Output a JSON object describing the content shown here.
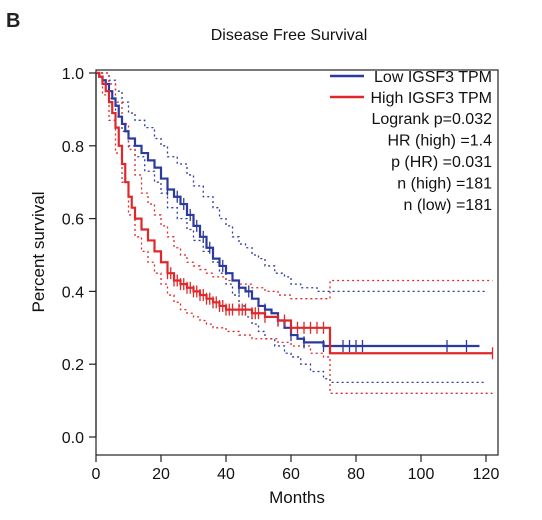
{
  "panel_label": "B",
  "colors": {
    "low": "#2b3a9e",
    "high": "#e0282a",
    "axis": "#222222"
  },
  "chart_data": {
    "type": "line",
    "title": "Disease Free Survival",
    "xlabel": "Months",
    "ylabel": "Percent survival",
    "xlim": [
      0,
      125
    ],
    "ylim": [
      0,
      1.0
    ],
    "xticks": [
      0,
      20,
      40,
      60,
      80,
      100,
      120
    ],
    "yticks": [
      0.0,
      0.2,
      0.4,
      0.6,
      0.8,
      1.0
    ],
    "ytick_labels": [
      "0.0",
      "0.2",
      "0.4",
      "0.6",
      "0.8",
      "1.0"
    ],
    "legend_position": "top-right",
    "legend_entries": [
      "Low IGSF3 TPM",
      "High IGSF3 TPM"
    ],
    "stats": [
      "Logrank p=0.032",
      "HR (high) =1.4",
      "p (HR) =0.031",
      "n (high) =181",
      "n (low) =181"
    ],
    "series": [
      {
        "name": "Low IGSF3 TPM",
        "color_key": "low",
        "steps": [
          [
            0,
            1.0
          ],
          [
            1,
            0.99
          ],
          [
            2,
            0.98
          ],
          [
            3,
            0.97
          ],
          [
            4,
            0.95
          ],
          [
            5,
            0.93
          ],
          [
            6,
            0.91
          ],
          [
            7,
            0.88
          ],
          [
            8,
            0.86
          ],
          [
            9,
            0.84
          ],
          [
            10,
            0.82
          ],
          [
            12,
            0.8
          ],
          [
            14,
            0.78
          ],
          [
            16,
            0.76
          ],
          [
            18,
            0.74
          ],
          [
            20,
            0.71
          ],
          [
            22,
            0.68
          ],
          [
            24,
            0.66
          ],
          [
            26,
            0.64
          ],
          [
            28,
            0.61
          ],
          [
            30,
            0.58
          ],
          [
            32,
            0.55
          ],
          [
            34,
            0.52
          ],
          [
            36,
            0.49
          ],
          [
            38,
            0.47
          ],
          [
            40,
            0.45
          ],
          [
            42,
            0.43
          ],
          [
            44,
            0.41
          ],
          [
            46,
            0.4
          ],
          [
            48,
            0.38
          ],
          [
            50,
            0.36
          ],
          [
            52,
            0.35
          ],
          [
            54,
            0.34
          ],
          [
            56,
            0.32
          ],
          [
            58,
            0.3
          ],
          [
            60,
            0.28
          ],
          [
            62,
            0.27
          ],
          [
            64,
            0.26
          ],
          [
            70,
            0.25
          ],
          [
            72,
            0.25
          ],
          [
            118,
            0.25
          ]
        ],
        "ci_upper": [
          [
            0,
            1.0
          ],
          [
            2,
            1.0
          ],
          [
            4,
            0.98
          ],
          [
            6,
            0.95
          ],
          [
            8,
            0.92
          ],
          [
            10,
            0.89
          ],
          [
            12,
            0.87
          ],
          [
            15,
            0.85
          ],
          [
            18,
            0.82
          ],
          [
            20,
            0.8
          ],
          [
            22,
            0.77
          ],
          [
            25,
            0.75
          ],
          [
            28,
            0.72
          ],
          [
            30,
            0.69
          ],
          [
            33,
            0.66
          ],
          [
            36,
            0.63
          ],
          [
            38,
            0.6
          ],
          [
            40,
            0.58
          ],
          [
            42,
            0.55
          ],
          [
            44,
            0.53
          ],
          [
            46,
            0.52
          ],
          [
            48,
            0.5
          ],
          [
            50,
            0.49
          ],
          [
            52,
            0.47
          ],
          [
            55,
            0.45
          ],
          [
            58,
            0.44
          ],
          [
            60,
            0.42
          ],
          [
            63,
            0.41
          ],
          [
            68,
            0.4
          ],
          [
            72,
            0.4
          ],
          [
            120,
            0.4
          ]
        ],
        "ci_lower": [
          [
            0,
            1.0
          ],
          [
            2,
            0.97
          ],
          [
            4,
            0.93
          ],
          [
            6,
            0.88
          ],
          [
            8,
            0.84
          ],
          [
            10,
            0.8
          ],
          [
            12,
            0.77
          ],
          [
            15,
            0.73
          ],
          [
            18,
            0.7
          ],
          [
            20,
            0.67
          ],
          [
            22,
            0.63
          ],
          [
            25,
            0.6
          ],
          [
            28,
            0.57
          ],
          [
            30,
            0.54
          ],
          [
            33,
            0.51
          ],
          [
            36,
            0.48
          ],
          [
            38,
            0.45
          ],
          [
            40,
            0.42
          ],
          [
            42,
            0.39
          ],
          [
            44,
            0.36
          ],
          [
            46,
            0.33
          ],
          [
            48,
            0.31
          ],
          [
            50,
            0.29
          ],
          [
            52,
            0.27
          ],
          [
            55,
            0.25
          ],
          [
            58,
            0.23
          ],
          [
            60,
            0.22
          ],
          [
            63,
            0.2
          ],
          [
            66,
            0.18
          ],
          [
            70,
            0.16
          ],
          [
            72,
            0.15
          ],
          [
            120,
            0.15
          ]
        ],
        "censor_times": [
          22,
          25,
          27,
          29,
          31,
          33,
          35,
          39,
          44,
          47,
          52,
          56,
          60,
          64,
          70,
          76,
          78,
          80,
          82,
          108,
          114
        ]
      },
      {
        "name": "High IGSF3 TPM",
        "color_key": "high",
        "steps": [
          [
            0,
            1.0
          ],
          [
            1,
            0.99
          ],
          [
            2,
            0.97
          ],
          [
            3,
            0.95
          ],
          [
            4,
            0.92
          ],
          [
            5,
            0.89
          ],
          [
            6,
            0.85
          ],
          [
            7,
            0.8
          ],
          [
            8,
            0.75
          ],
          [
            9,
            0.7
          ],
          [
            10,
            0.66
          ],
          [
            11,
            0.63
          ],
          [
            12,
            0.6
          ],
          [
            14,
            0.57
          ],
          [
            16,
            0.54
          ],
          [
            18,
            0.51
          ],
          [
            20,
            0.48
          ],
          [
            22,
            0.45
          ],
          [
            24,
            0.43
          ],
          [
            26,
            0.42
          ],
          [
            28,
            0.41
          ],
          [
            30,
            0.4
          ],
          [
            32,
            0.39
          ],
          [
            34,
            0.38
          ],
          [
            36,
            0.37
          ],
          [
            38,
            0.36
          ],
          [
            40,
            0.35
          ],
          [
            44,
            0.35
          ],
          [
            48,
            0.34
          ],
          [
            52,
            0.33
          ],
          [
            56,
            0.32
          ],
          [
            60,
            0.3
          ],
          [
            66,
            0.3
          ],
          [
            70,
            0.3
          ],
          [
            72,
            0.23
          ],
          [
            122,
            0.23
          ]
        ],
        "ci_upper": [
          [
            0,
            1.0
          ],
          [
            2,
            1.0
          ],
          [
            4,
            0.97
          ],
          [
            6,
            0.92
          ],
          [
            8,
            0.86
          ],
          [
            10,
            0.79
          ],
          [
            12,
            0.72
          ],
          [
            14,
            0.67
          ],
          [
            16,
            0.64
          ],
          [
            18,
            0.61
          ],
          [
            20,
            0.58
          ],
          [
            22,
            0.55
          ],
          [
            24,
            0.52
          ],
          [
            26,
            0.5
          ],
          [
            28,
            0.48
          ],
          [
            30,
            0.47
          ],
          [
            32,
            0.46
          ],
          [
            34,
            0.45
          ],
          [
            36,
            0.44
          ],
          [
            40,
            0.43
          ],
          [
            44,
            0.42
          ],
          [
            48,
            0.41
          ],
          [
            52,
            0.4
          ],
          [
            56,
            0.39
          ],
          [
            60,
            0.38
          ],
          [
            66,
            0.38
          ],
          [
            70,
            0.38
          ],
          [
            72,
            0.43
          ],
          [
            122,
            0.43
          ]
        ],
        "ci_lower": [
          [
            0,
            1.0
          ],
          [
            2,
            0.94
          ],
          [
            4,
            0.87
          ],
          [
            6,
            0.78
          ],
          [
            8,
            0.7
          ],
          [
            10,
            0.61
          ],
          [
            12,
            0.55
          ],
          [
            14,
            0.51
          ],
          [
            16,
            0.48
          ],
          [
            18,
            0.45
          ],
          [
            20,
            0.42
          ],
          [
            22,
            0.39
          ],
          [
            24,
            0.37
          ],
          [
            26,
            0.35
          ],
          [
            28,
            0.34
          ],
          [
            30,
            0.33
          ],
          [
            32,
            0.32
          ],
          [
            34,
            0.31
          ],
          [
            36,
            0.3
          ],
          [
            40,
            0.29
          ],
          [
            44,
            0.28
          ],
          [
            48,
            0.27
          ],
          [
            52,
            0.27
          ],
          [
            56,
            0.26
          ],
          [
            60,
            0.25
          ],
          [
            66,
            0.23
          ],
          [
            70,
            0.22
          ],
          [
            72,
            0.12
          ],
          [
            122,
            0.12
          ]
        ],
        "censor_times": [
          22,
          23,
          24,
          25,
          26,
          27,
          28,
          29,
          30,
          31,
          32,
          33,
          34,
          35,
          36,
          37,
          38,
          39,
          40,
          41,
          42,
          44,
          45,
          46,
          48,
          49,
          50,
          52,
          56,
          58,
          60,
          62,
          64,
          66,
          68,
          70,
          122
        ]
      }
    ]
  }
}
